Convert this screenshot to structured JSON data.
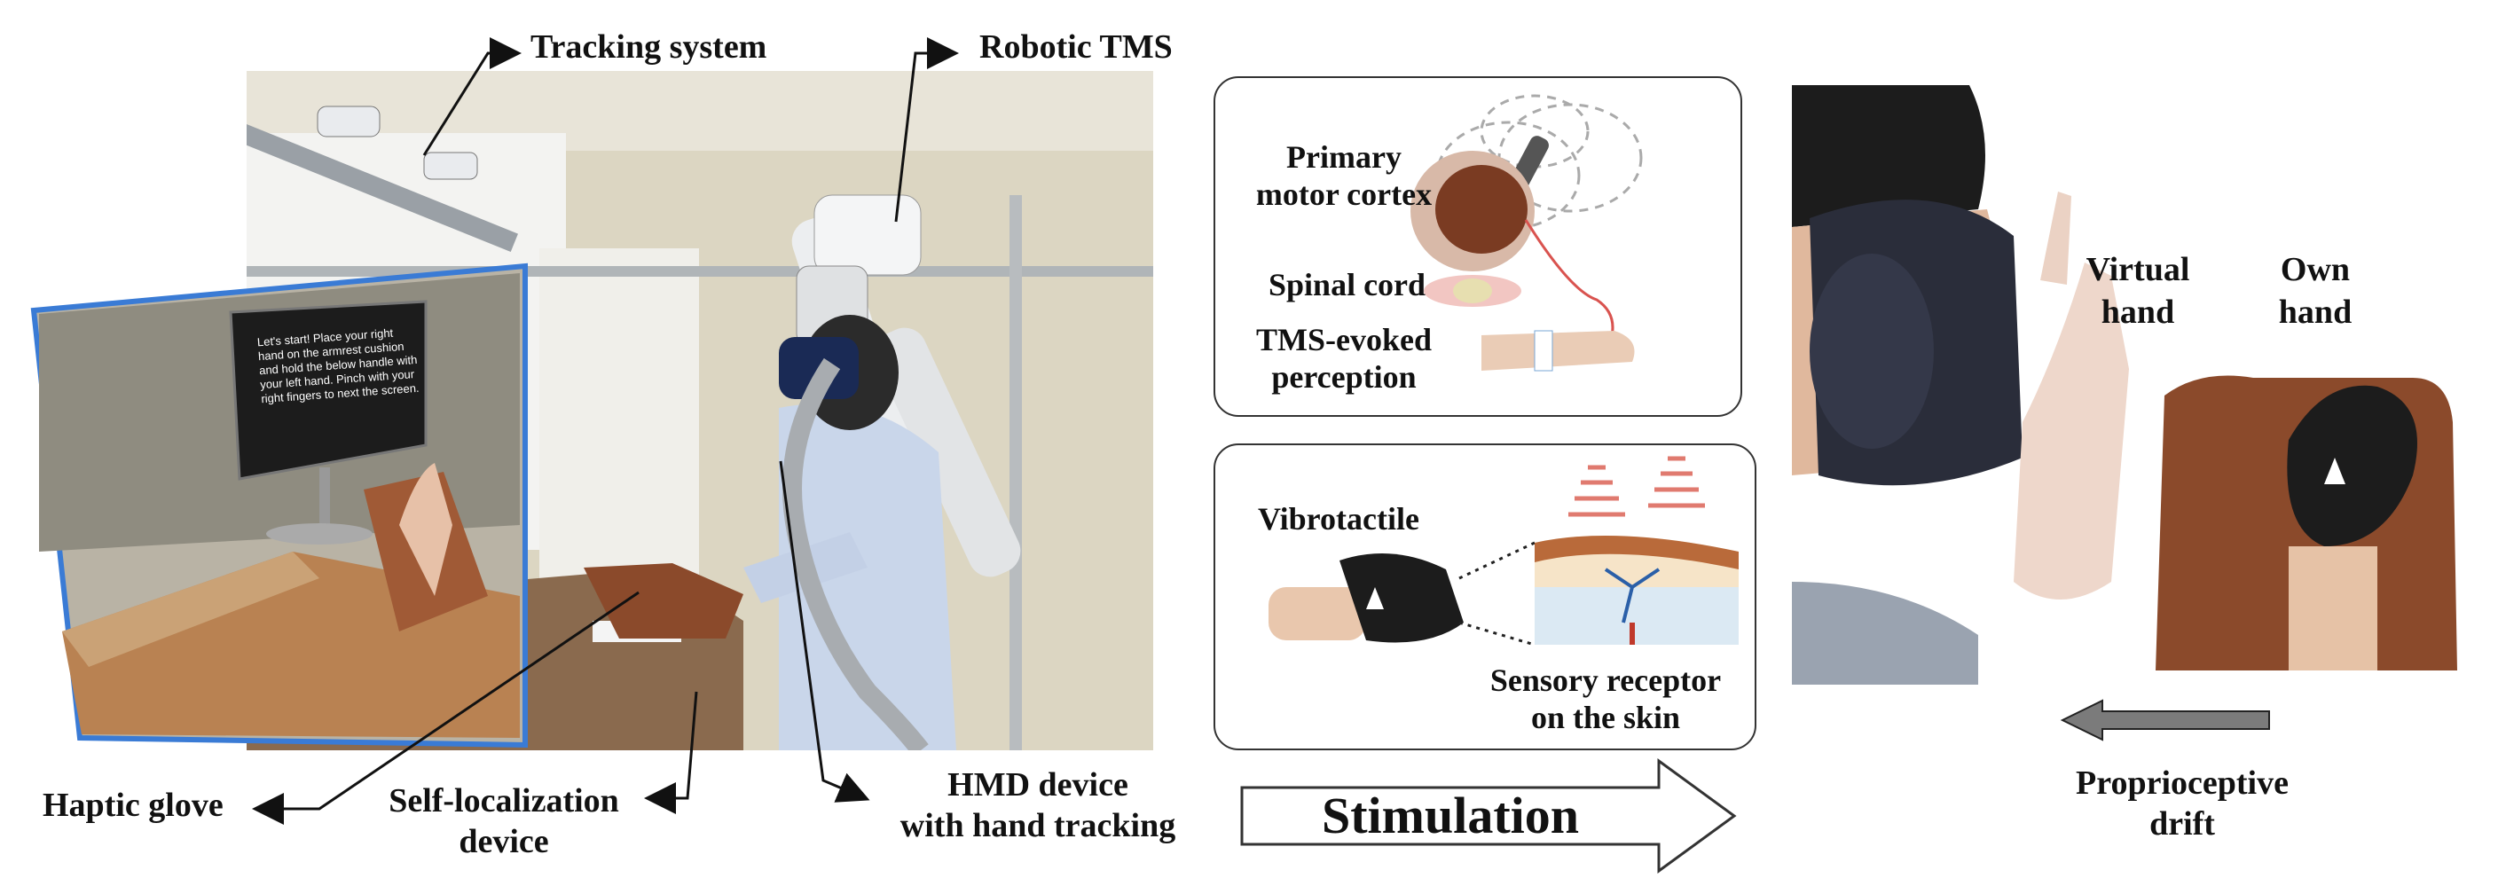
{
  "labels": {
    "tracking_system": "Tracking system",
    "robotic_tms": "Robotic TMS",
    "haptic_glove": "Haptic glove",
    "self_localization_line1": "Self-localization",
    "self_localization_line2": "device",
    "hmd_line1": "HMD device",
    "hmd_line2": "with hand tracking",
    "primary_motor_line1": "Primary",
    "primary_motor_line2": "motor cortex",
    "spinal_cord": "Spinal cord",
    "tms_evoked_line1": "TMS-evoked",
    "tms_evoked_line2": "perception",
    "vibrotactile": "Vibrotactile",
    "sensory_line1": "Sensory receptor",
    "sensory_line2": "on the skin",
    "stimulation": "Stimulation",
    "virtual_hand_line1": "Virtual",
    "virtual_hand_line2": "hand",
    "own_hand_line1": "Own",
    "own_hand_line2": "hand",
    "proprio_line1": "Proprioceptive",
    "proprio_line2": "drift"
  },
  "vr_screen": {
    "text": "Let's start! Place your right hand on the armrest cushion and hold the below handle with your left hand. Pinch with your right fingers to next the screen."
  },
  "colors": {
    "vr_border": "#3a7bd5",
    "cushion": "#8b4a2b",
    "stim_red": "#d9534f"
  }
}
